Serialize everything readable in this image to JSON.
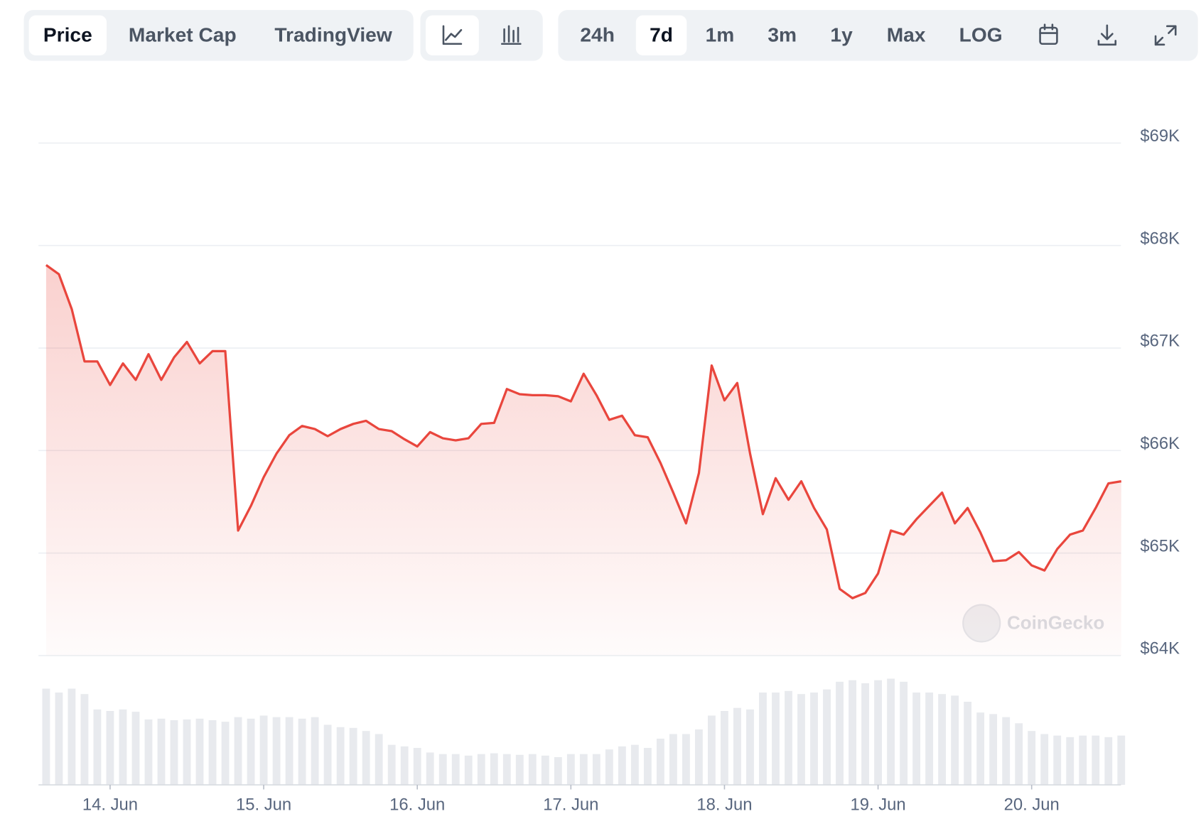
{
  "toolbar": {
    "view_tabs": [
      "Price",
      "Market Cap",
      "TradingView"
    ],
    "active_view": 0,
    "ranges": [
      "24h",
      "7d",
      "1m",
      "3m",
      "1y",
      "Max",
      "LOG"
    ],
    "active_range": 1
  },
  "chart_data": {
    "type": "line",
    "color": "#e9463d",
    "watermark": "CoinGecko",
    "categories": [
      null,
      null,
      null,
      null,
      null,
      "14. Jun",
      null,
      null,
      null,
      null,
      null,
      null,
      null,
      null,
      null,
      null,
      null,
      "15. Jun",
      null,
      null,
      null,
      null,
      null,
      null,
      null,
      null,
      null,
      null,
      null,
      "16. Jun",
      null,
      null,
      null,
      null,
      null,
      null,
      null,
      null,
      null,
      null,
      null,
      "17. Jun",
      null,
      null,
      null,
      null,
      null,
      null,
      null,
      null,
      null,
      null,
      null,
      "18. Jun",
      null,
      null,
      null,
      null,
      null,
      null,
      null,
      null,
      null,
      null,
      null,
      "19. Jun",
      null,
      null,
      null,
      null,
      null,
      null,
      null,
      null,
      null,
      null,
      null,
      "20. Jun",
      null,
      null,
      null,
      null,
      null,
      null,
      null
    ],
    "values": [
      67810,
      67720,
      67380,
      66870,
      66870,
      66640,
      66850,
      66690,
      66940,
      66690,
      66910,
      67060,
      66850,
      66970,
      66970,
      65220,
      65460,
      65740,
      65970,
      66150,
      66240,
      66210,
      66140,
      66210,
      66260,
      66290,
      66210,
      66190,
      66110,
      66040,
      66180,
      66120,
      66100,
      66120,
      66260,
      66270,
      66600,
      66550,
      66540,
      66540,
      66530,
      66480,
      66750,
      66540,
      66300,
      66340,
      66150,
      66130,
      65880,
      65590,
      65290,
      65780,
      66830,
      66490,
      66660,
      65970,
      65380,
      65730,
      65520,
      65700,
      65440,
      65230,
      64650,
      64560,
      64610,
      64800,
      65220,
      65180,
      65330,
      65460,
      65590,
      65290,
      65440,
      65200,
      64920,
      64930,
      65010,
      64880,
      64830,
      65040,
      65180,
      65220,
      65440,
      65680,
      65700
    ],
    "volume": [
      125,
      120,
      125,
      118,
      98,
      96,
      98,
      95,
      85,
      86,
      84,
      85,
      86,
      84,
      82,
      88,
      86,
      90,
      88,
      88,
      86,
      88,
      78,
      75,
      74,
      70,
      66,
      52,
      50,
      48,
      42,
      40,
      40,
      38,
      40,
      41,
      40,
      39,
      40,
      38,
      36,
      40,
      40,
      40,
      46,
      50,
      52,
      48,
      60,
      66,
      66,
      72,
      90,
      96,
      100,
      98,
      120,
      120,
      122,
      118,
      120,
      124,
      134,
      136,
      132,
      136,
      138,
      134,
      120,
      120,
      118,
      116,
      108,
      94,
      92,
      88,
      80,
      70,
      66,
      64,
      62,
      64,
      64,
      62,
      64
    ],
    "ylim": [
      64000,
      69600
    ],
    "yticks": [
      {
        "value": 64000,
        "label": "$64K"
      },
      {
        "value": 65000,
        "label": "$65K"
      },
      {
        "value": 66000,
        "label": "$66K"
      },
      {
        "value": 67000,
        "label": "$67K"
      },
      {
        "value": 68000,
        "label": "$68K"
      },
      {
        "value": 69000,
        "label": "$69K"
      }
    ],
    "grid": true
  }
}
